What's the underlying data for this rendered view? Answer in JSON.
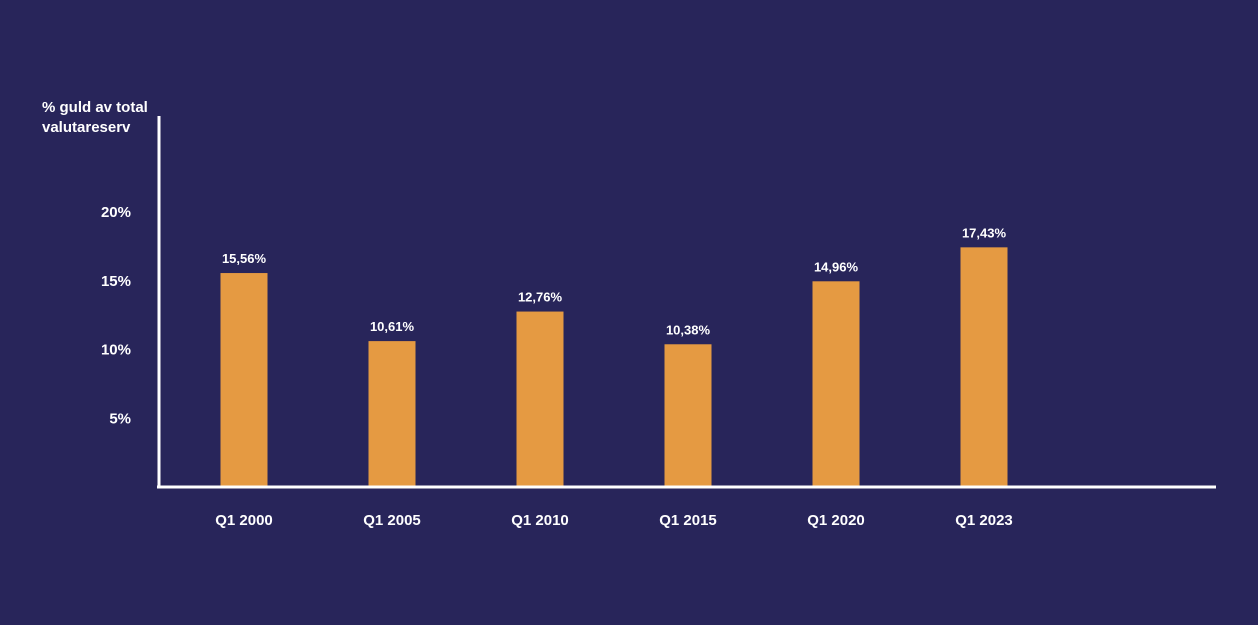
{
  "colors": {
    "background": "#28255a",
    "bar": "#e59a42",
    "text": "#ffffff",
    "axis": "#ffffff"
  },
  "chart_data": {
    "type": "bar",
    "ylabel_lines": [
      "% guld av total",
      "valutareserv"
    ],
    "categories": [
      "Q1 2000",
      "Q1 2005",
      "Q1 2010",
      "Q1 2015",
      "Q1 2020",
      "Q1 2023"
    ],
    "values": [
      15.56,
      10.61,
      12.76,
      10.38,
      14.96,
      17.43
    ],
    "value_labels": [
      "15,56%",
      "10,61%",
      "12,76%",
      "10,38%",
      "14,96%",
      "17,43%"
    ],
    "yticks": [
      {
        "value": 5,
        "label": "5%"
      },
      {
        "value": 10,
        "label": "10%"
      },
      {
        "value": 15,
        "label": "15%"
      },
      {
        "value": 20,
        "label": "20%"
      }
    ],
    "ylim": [
      0,
      27
    ],
    "grid": false,
    "legend": "none"
  }
}
